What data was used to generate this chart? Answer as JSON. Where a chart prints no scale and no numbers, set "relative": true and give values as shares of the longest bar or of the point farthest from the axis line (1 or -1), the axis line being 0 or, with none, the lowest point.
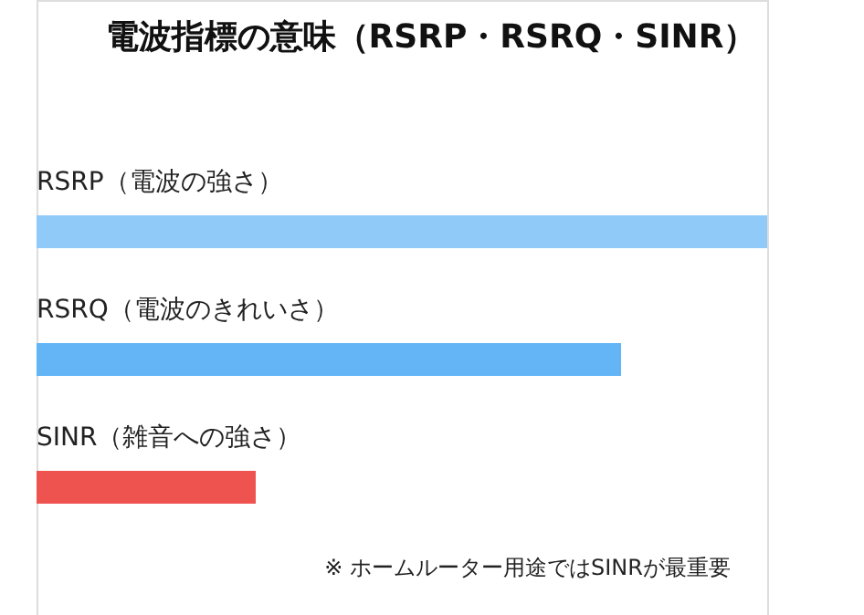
{
  "chart_data": {
    "type": "bar",
    "orientation": "horizontal",
    "relative": true,
    "title": "電波指標の意味（RSRP・RSRQ・SINR）",
    "categories": [
      "RSRP（電波の強さ）",
      "RSRQ（電波のきれいさ）",
      "SINR（雑音への強さ）"
    ],
    "values": [
      1,
      0.8,
      0.3
    ],
    "colors": [
      "#90caf9",
      "#64b5f6",
      "#ef5350"
    ],
    "annotations": [
      "※ ホームルーター用途ではSINRが最重要"
    ]
  }
}
